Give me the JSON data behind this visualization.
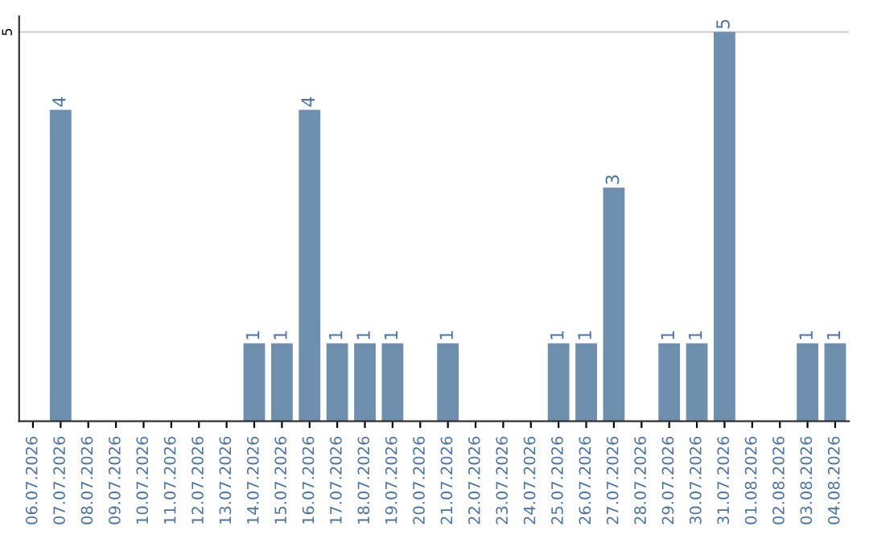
{
  "chart_data": {
    "type": "bar",
    "categories": [
      "06.07.2026",
      "07.07.2026",
      "08.07.2026",
      "09.07.2026",
      "10.07.2026",
      "11.07.2026",
      "12.07.2026",
      "13.07.2026",
      "14.07.2026",
      "15.07.2026",
      "16.07.2026",
      "17.07.2026",
      "18.07.2026",
      "19.07.2026",
      "20.07.2026",
      "21.07.2026",
      "22.07.2026",
      "23.07.2026",
      "24.07.2026",
      "25.07.2026",
      "26.07.2026",
      "27.07.2026",
      "28.07.2026",
      "29.07.2026",
      "30.07.2026",
      "31.07.2026",
      "01.08.2026",
      "02.08.2026",
      "03.08.2026",
      "04.08.2026"
    ],
    "values": [
      0,
      4,
      0,
      0,
      0,
      0,
      0,
      0,
      1,
      1,
      4,
      1,
      1,
      1,
      0,
      1,
      0,
      0,
      0,
      1,
      1,
      3,
      0,
      1,
      1,
      5,
      0,
      0,
      1,
      1
    ],
    "value_labels": [
      null,
      "4",
      null,
      null,
      null,
      null,
      null,
      null,
      "1",
      "1",
      "4",
      "1",
      "1",
      "1",
      null,
      "1",
      null,
      null,
      null,
      "1",
      "1",
      "3",
      null,
      "1",
      "1",
      "5",
      null,
      null,
      "1",
      "1"
    ],
    "color": "#6e8fae",
    "ylim": [
      0,
      5.2
    ],
    "yticks": [
      5
    ],
    "grid": "y"
  }
}
